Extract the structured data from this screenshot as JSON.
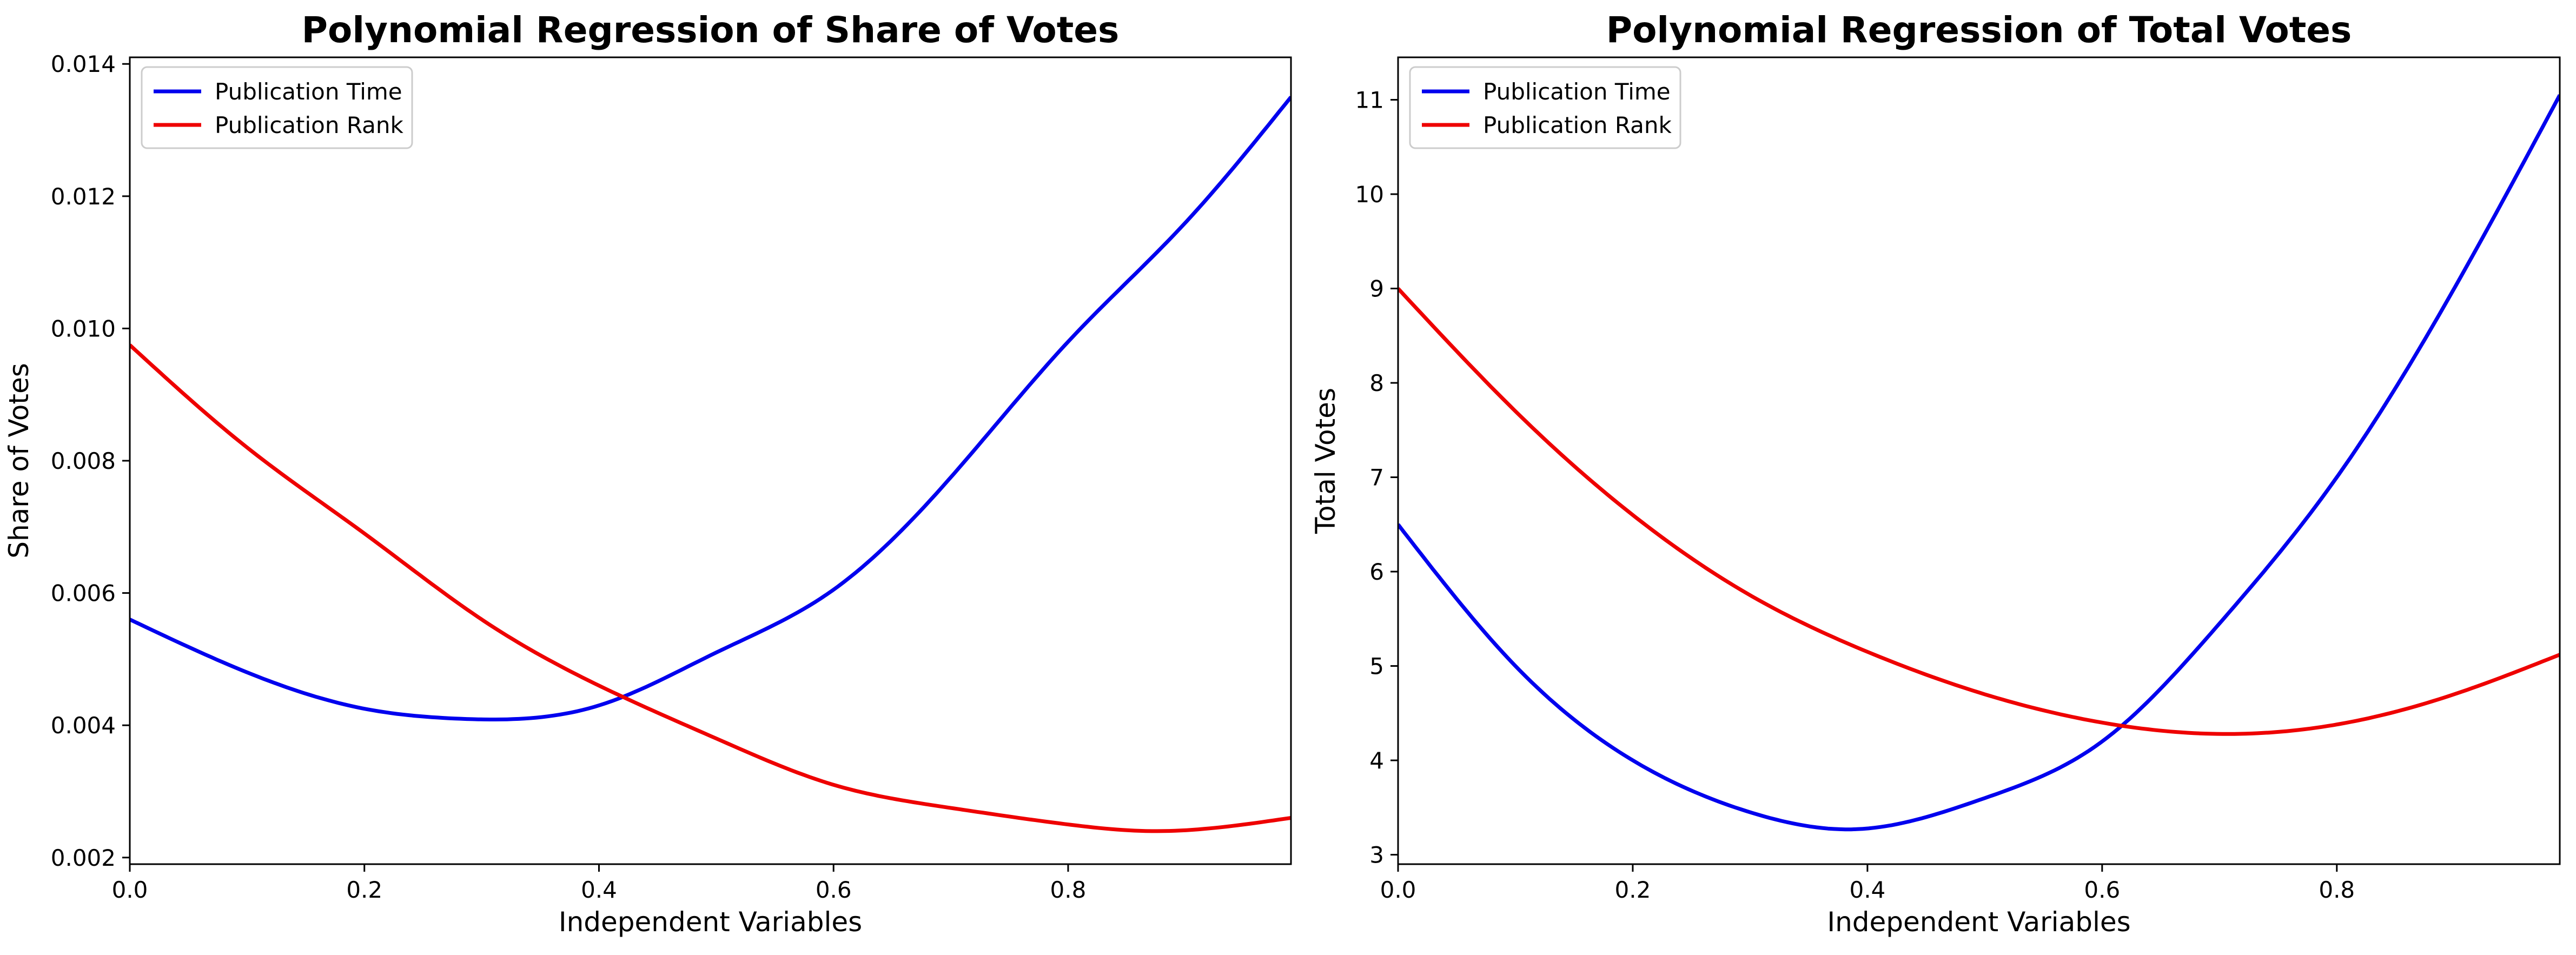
{
  "chart_data": [
    {
      "type": "line",
      "title": "Polynomial Regression of Share of Votes",
      "xlabel": "Independent Variables",
      "ylabel": "Share of Votes",
      "xlim": [
        0,
        0.99
      ],
      "ylim": [
        0.0019,
        0.0141
      ],
      "xticks": [
        0.0,
        0.2,
        0.4,
        0.6,
        0.8
      ],
      "xtick_labels": [
        "0.0",
        "0.2",
        "0.4",
        "0.6",
        "0.8"
      ],
      "yticks": [
        0.002,
        0.004,
        0.006,
        0.008,
        0.01,
        0.012,
        0.014
      ],
      "ytick_labels": [
        "0.002",
        "0.004",
        "0.006",
        "0.008",
        "0.010",
        "0.012",
        "0.014"
      ],
      "grid": false,
      "legend_position": "top-left",
      "series": [
        {
          "name": "Publication Time",
          "color": "#0000ee",
          "x": [
            0.0,
            0.1,
            0.2,
            0.28,
            0.4,
            0.5,
            0.6,
            0.7,
            0.8,
            0.9,
            0.99
          ],
          "y": [
            0.0056,
            0.0048,
            0.00425,
            0.0041,
            0.0043,
            0.0051,
            0.00605,
            0.00775,
            0.0098,
            0.0116,
            0.0135
          ]
        },
        {
          "name": "Publication Rank",
          "color": "#ee0000",
          "x": [
            0.0,
            0.1,
            0.2,
            0.3,
            0.4,
            0.5,
            0.6,
            0.7,
            0.8,
            0.87,
            0.99
          ],
          "y": [
            0.00975,
            0.0082,
            0.0069,
            0.0056,
            0.0046,
            0.0038,
            0.0031,
            0.00275,
            0.0025,
            0.0024,
            0.0026
          ]
        }
      ]
    },
    {
      "type": "line",
      "title": "Polynomial Regression of Total Votes",
      "xlabel": "Independent Variables",
      "ylabel": "Total Votes",
      "xlim": [
        0,
        0.99
      ],
      "ylim": [
        2.9,
        11.45
      ],
      "xticks": [
        0.0,
        0.2,
        0.4,
        0.6,
        0.8
      ],
      "xtick_labels": [
        "0.0",
        "0.2",
        "0.4",
        "0.6",
        "0.8"
      ],
      "yticks": [
        3,
        4,
        5,
        6,
        7,
        8,
        9,
        10,
        11
      ],
      "ytick_labels": [
        "3",
        "4",
        "5",
        "6",
        "7",
        "8",
        "9",
        "10",
        "11"
      ],
      "grid": false,
      "legend_position": "top-left",
      "series": [
        {
          "name": "Publication Time",
          "color": "#0000ee",
          "x": [
            0.0,
            0.1,
            0.2,
            0.3,
            0.39,
            0.5,
            0.6,
            0.7,
            0.8,
            0.9,
            0.99
          ],
          "y": [
            6.5,
            5.0,
            4.0,
            3.45,
            3.27,
            3.6,
            4.2,
            5.45,
            7.0,
            9.0,
            11.05
          ]
        },
        {
          "name": "Publication Rank",
          "color": "#ee0000",
          "x": [
            0.0,
            0.1,
            0.2,
            0.3,
            0.4,
            0.5,
            0.6,
            0.7,
            0.8,
            0.9,
            0.99
          ],
          "y": [
            9.0,
            7.7,
            6.6,
            5.75,
            5.15,
            4.7,
            4.4,
            4.28,
            4.38,
            4.7,
            5.12
          ]
        }
      ]
    }
  ]
}
